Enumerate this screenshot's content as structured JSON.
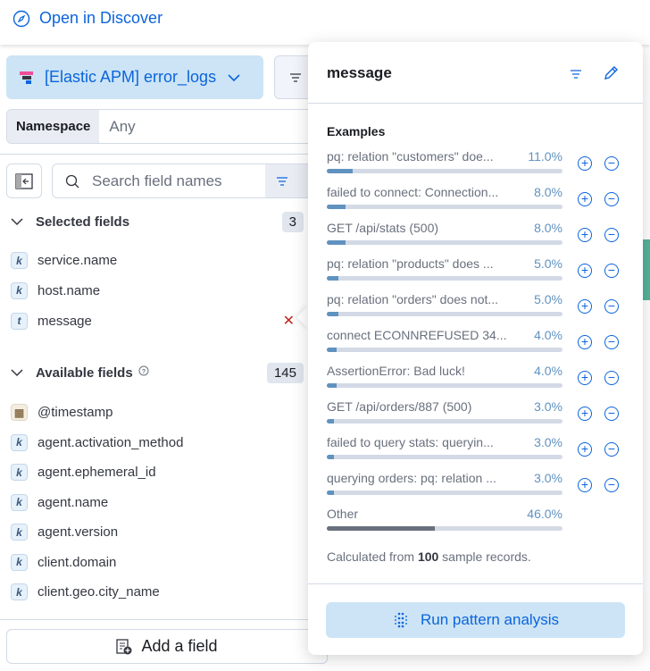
{
  "header": {
    "open_in_discover": "Open in Discover"
  },
  "data_view": {
    "label": "[Elastic APM] error_logs"
  },
  "namespace": {
    "label": "Namespace",
    "value": "Any"
  },
  "search": {
    "placeholder": "Search field names"
  },
  "selected": {
    "title": "Selected fields",
    "count": "3",
    "fields": [
      {
        "type": "k",
        "name": "service.name"
      },
      {
        "type": "k",
        "name": "host.name"
      },
      {
        "type": "t",
        "name": "message"
      }
    ]
  },
  "available": {
    "title": "Available fields",
    "count": "145",
    "fields": [
      {
        "type": "date",
        "name": "@timestamp"
      },
      {
        "type": "k",
        "name": "agent.activation_method"
      },
      {
        "type": "k",
        "name": "agent.ephemeral_id"
      },
      {
        "type": "k",
        "name": "agent.name"
      },
      {
        "type": "k",
        "name": "agent.version"
      },
      {
        "type": "k",
        "name": "client.domain"
      },
      {
        "type": "k",
        "name": "client.geo.city_name"
      }
    ]
  },
  "add_field": "Add a field",
  "popover": {
    "title": "message",
    "examples_title": "Examples",
    "examples": [
      {
        "label": "pq: relation \"customers\" doe...",
        "pct": "11.0%",
        "value": 11
      },
      {
        "label": "failed to connect: Connection...",
        "pct": "8.0%",
        "value": 8
      },
      {
        "label": "GET /api/stats (500)",
        "pct": "8.0%",
        "value": 8
      },
      {
        "label": "pq: relation \"products\" does ...",
        "pct": "5.0%",
        "value": 5
      },
      {
        "label": "pq: relation \"orders\" does not...",
        "pct": "5.0%",
        "value": 5
      },
      {
        "label": "connect ECONNREFUSED 34...",
        "pct": "4.0%",
        "value": 4
      },
      {
        "label": "AssertionError: Bad luck!",
        "pct": "4.0%",
        "value": 4
      },
      {
        "label": "GET /api/orders/887 (500)",
        "pct": "3.0%",
        "value": 3
      },
      {
        "label": "failed to query stats: queryin...",
        "pct": "3.0%",
        "value": 3
      },
      {
        "label": "querying orders: pq: relation ...",
        "pct": "3.0%",
        "value": 3
      }
    ],
    "other": {
      "label": "Other",
      "pct": "46.0%",
      "value": 46
    },
    "footer_pre": "Calculated from ",
    "footer_count": "100",
    "footer_post": " sample records.",
    "run_button": "Run pattern analysis"
  },
  "colors": {
    "accent": "#0b64dd",
    "bar": "#6092c0",
    "button_bg": "#cce4f5"
  }
}
